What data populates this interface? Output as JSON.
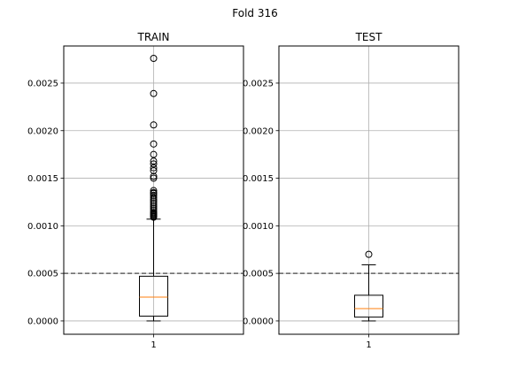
{
  "chart_data": {
    "suptitle": "Fold 316",
    "type": "box",
    "reference_line": {
      "y": 0.0005,
      "style": "dashed",
      "color": "#444444"
    },
    "grid": true,
    "colors": {
      "median": "#ff7f0e",
      "box": "#000000",
      "grid": "#b0b0b0"
    },
    "panels": [
      {
        "title": "TRAIN",
        "ylim": [
          -0.00014,
          0.00289
        ],
        "yticks": [
          0.0,
          0.0005,
          0.001,
          0.0015,
          0.002,
          0.0025
        ],
        "ytick_labels": [
          "0.0000",
          "0.0005",
          "0.0010",
          "0.0015",
          "0.0020",
          "0.0025"
        ],
        "xtick_labels": [
          "1"
        ],
        "box": {
          "whisker_low": 0.0,
          "q1": 5e-05,
          "median": 0.00025,
          "q3": 0.00047,
          "whisker_high": 0.00107
        },
        "fliers": [
          0.00109,
          0.0011,
          0.00111,
          0.00112,
          0.00113,
          0.00114,
          0.00116,
          0.00118,
          0.0012,
          0.00122,
          0.00124,
          0.00126,
          0.00128,
          0.0013,
          0.00132,
          0.00134,
          0.00135,
          0.00137,
          0.0015,
          0.00152,
          0.00158,
          0.00161,
          0.00165,
          0.00168,
          0.00175,
          0.00186,
          0.00206,
          0.00239,
          0.00276
        ]
      },
      {
        "title": "TEST",
        "ylim": [
          -0.00014,
          0.00289
        ],
        "yticks": [
          0.0,
          0.0005,
          0.001,
          0.0015,
          0.002,
          0.0025
        ],
        "ytick_labels": [
          "0.0000",
          "0.0005",
          "0.0010",
          "0.0015",
          "0.0020",
          "0.0025"
        ],
        "xtick_labels": [
          "1"
        ],
        "box": {
          "whisker_low": 0.0,
          "q1": 4e-05,
          "median": 0.00013,
          "q3": 0.00027,
          "whisker_high": 0.00059
        },
        "fliers": [
          0.0007
        ]
      }
    ]
  }
}
